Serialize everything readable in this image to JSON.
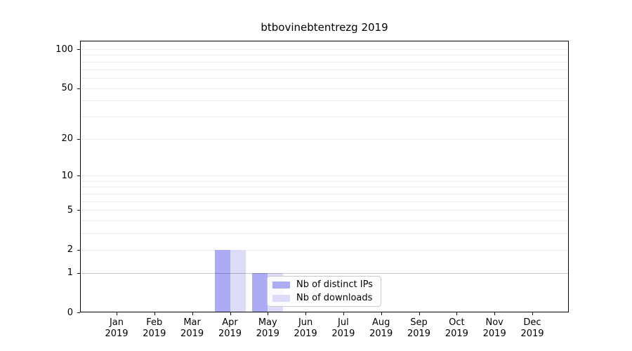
{
  "chart_data": {
    "type": "bar",
    "title": "btbovinebtentrezg 2019",
    "x_categories": [
      {
        "month": "Jan",
        "year": "2019"
      },
      {
        "month": "Feb",
        "year": "2019"
      },
      {
        "month": "Mar",
        "year": "2019"
      },
      {
        "month": "Apr",
        "year": "2019"
      },
      {
        "month": "May",
        "year": "2019"
      },
      {
        "month": "Jun",
        "year": "2019"
      },
      {
        "month": "Jul",
        "year": "2019"
      },
      {
        "month": "Aug",
        "year": "2019"
      },
      {
        "month": "Sep",
        "year": "2019"
      },
      {
        "month": "Oct",
        "year": "2019"
      },
      {
        "month": "Nov",
        "year": "2019"
      },
      {
        "month": "Dec",
        "year": "2019"
      }
    ],
    "series": [
      {
        "name": "Nb of distinct IPs",
        "color": "#abacf4",
        "values": [
          0,
          0,
          0,
          2,
          1,
          0,
          0,
          0,
          0,
          0,
          0,
          0
        ]
      },
      {
        "name": "Nb of downloads",
        "color": "#dddcf8",
        "values": [
          0,
          0,
          0,
          2,
          1,
          0,
          0,
          0,
          0,
          0,
          0,
          0
        ]
      }
    ],
    "xlabel": "",
    "ylabel": "",
    "y_scale": "log1p",
    "y_ticks": [
      0,
      1,
      2,
      5,
      10,
      20,
      50,
      100
    ],
    "y_max": 116,
    "gridline_values": [
      1,
      2,
      3,
      4,
      5,
      6,
      7,
      8,
      9,
      10,
      20,
      30,
      40,
      50,
      60,
      70,
      80,
      90,
      100
    ],
    "emphasized_gridline": 1,
    "grid_on": true,
    "legend_position": "lower-center",
    "colors": {
      "grid": "#ececec",
      "emphasized_grid": "rgba(0,0,0,0.22)",
      "axis": "#000000",
      "background": "#ffffff"
    }
  }
}
